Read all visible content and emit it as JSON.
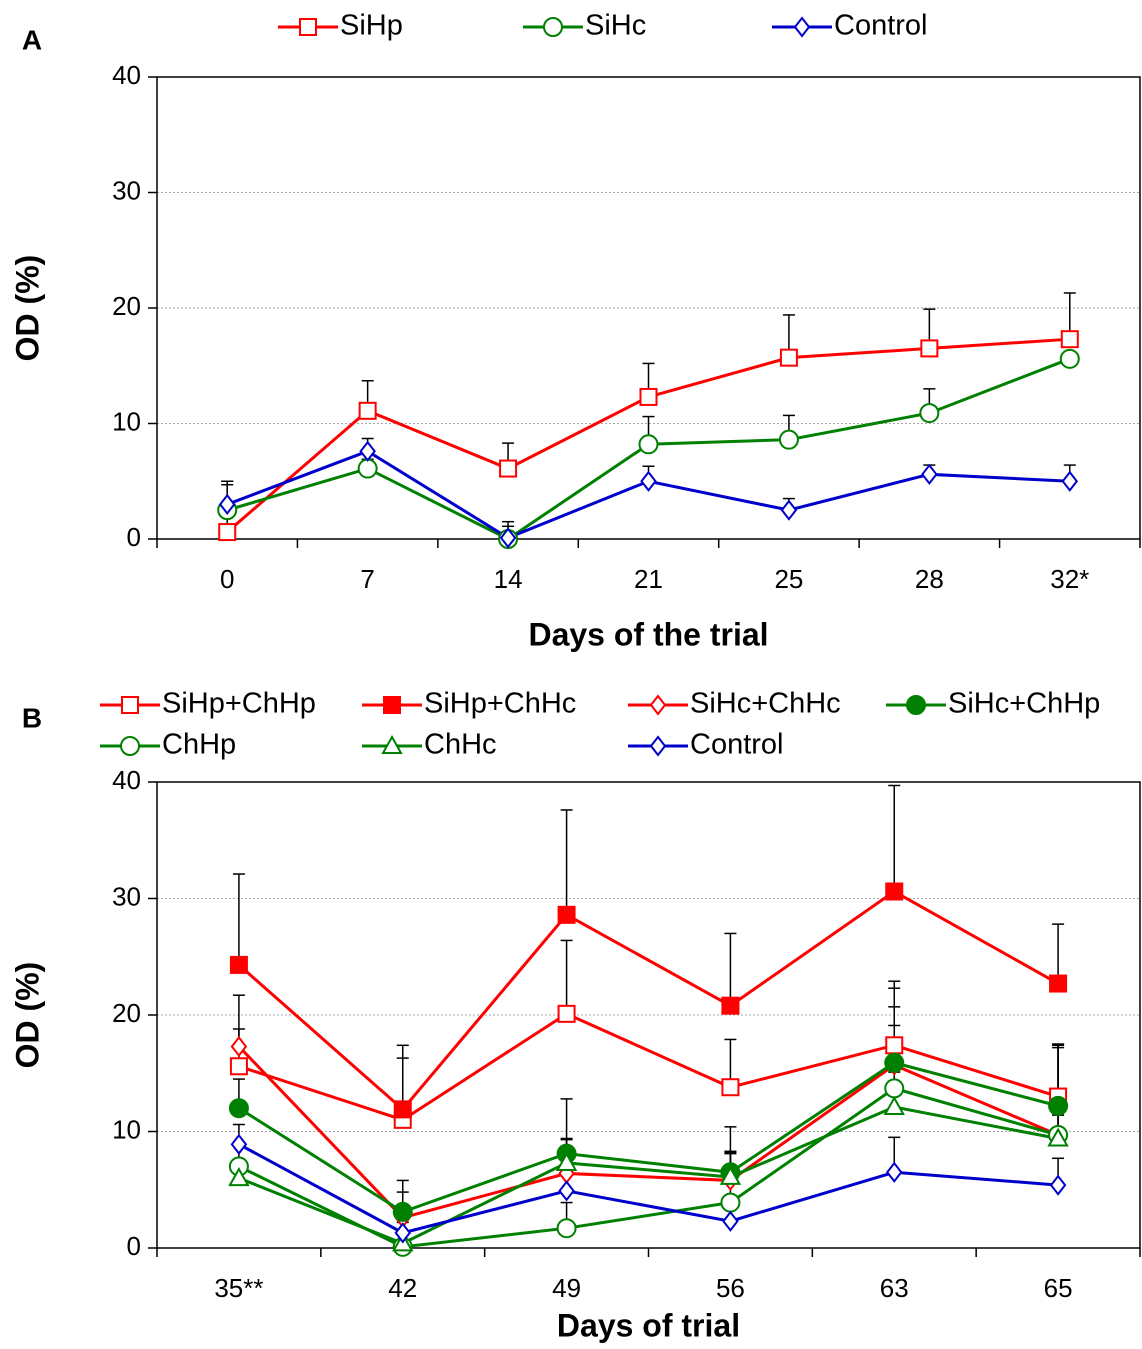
{
  "chart_data": [
    {
      "type": "line",
      "panel_label": "A",
      "x_label": "Days of the trial",
      "y_label": "OD (%)",
      "categories": [
        "0",
        "7",
        "14",
        "21",
        "25",
        "28",
        "32*"
      ],
      "ylim": [
        0,
        40
      ],
      "yticks": [
        0,
        10,
        20,
        30,
        40
      ],
      "grid": true,
      "series": [
        {
          "name": "SiHp",
          "color": "#ff0000",
          "marker": "square",
          "filled": false,
          "values": [
            0.6,
            11.1,
            6.1,
            12.3,
            15.7,
            16.5,
            17.3
          ],
          "errors": [
            4.4,
            2.6,
            2.2,
            2.9,
            3.7,
            3.4,
            4.0
          ]
        },
        {
          "name": "SiHc",
          "color": "#008000",
          "marker": "circle",
          "filled": false,
          "values": [
            2.5,
            6.1,
            0,
            8.2,
            8.6,
            10.9,
            15.6
          ],
          "errors": [
            2.2,
            0.8,
            1.5,
            2.4,
            2.1,
            2.1,
            0
          ]
        },
        {
          "name": "Control",
          "color": "#0000cc",
          "marker": "diamond",
          "filled": false,
          "values": [
            3.0,
            7.6,
            0.1,
            5.0,
            2.5,
            5.6,
            5.0
          ],
          "errors": [
            2.0,
            1.1,
            1.0,
            1.3,
            1.0,
            0.8,
            1.4
          ]
        }
      ]
    },
    {
      "type": "line",
      "panel_label": "B",
      "x_label": "Days of trial",
      "y_label": "OD (%)",
      "categories": [
        "35**",
        "42",
        "49",
        "56",
        "63",
        "65"
      ],
      "ylim": [
        0,
        40
      ],
      "yticks": [
        0,
        10,
        20,
        30,
        40
      ],
      "grid": true,
      "series": [
        {
          "name": "SiHp+ChHp",
          "color": "#ff0000",
          "marker": "square",
          "filled": false,
          "values": [
            15.6,
            11.0,
            20.1,
            13.8,
            17.4,
            13.0
          ],
          "errors": [
            3.2,
            5.3,
            6.3,
            4.1,
            1.7,
            4.4
          ]
        },
        {
          "name": "SiHp+ChHc",
          "color": "#ff0000",
          "marker": "square",
          "filled": true,
          "values": [
            24.3,
            11.9,
            28.6,
            20.8,
            30.6,
            22.7
          ],
          "errors": [
            7.8,
            5.5,
            9.0,
            6.2,
            9.1,
            5.1
          ]
        },
        {
          "name": "SiHc+ChHc",
          "color": "#ff0000",
          "marker": "diamond",
          "filled": false,
          "values": [
            17.3,
            2.6,
            6.4,
            5.8,
            15.7,
            9.7
          ],
          "errors": [
            4.4,
            2.2,
            3.0,
            2.5,
            6.6,
            7.8
          ]
        },
        {
          "name": "SiHc+ChHp",
          "color": "#008000",
          "marker": "circle",
          "filled": true,
          "values": [
            12.0,
            3.1,
            8.1,
            6.5,
            15.9,
            12.2
          ],
          "errors": [
            2.5,
            2.7,
            4.7,
            3.9,
            7.0,
            5.3
          ]
        },
        {
          "name": "ChHp",
          "color": "#008000",
          "marker": "circle",
          "filled": false,
          "values": [
            7.0,
            0.1,
            1.7,
            3.9,
            13.7,
            9.7
          ],
          "errors": [
            2.0,
            3.0,
            2.2,
            4.3,
            7.0,
            7.5
          ]
        },
        {
          "name": "ChHc",
          "color": "#008000",
          "marker": "triangle",
          "filled": false,
          "values": [
            6.0,
            0.4,
            7.3,
            6.1,
            12.1,
            9.4
          ],
          "errors": [
            1.5,
            1.8,
            2.0,
            2.0,
            3.0,
            2.0
          ]
        },
        {
          "name": "Control",
          "color": "#0000cc",
          "marker": "diamond",
          "filled": false,
          "values": [
            8.9,
            1.3,
            4.9,
            2.3,
            6.5,
            5.4
          ],
          "errors": [
            1.7,
            1.6,
            1.5,
            1.0,
            3.0,
            2.3
          ]
        }
      ]
    }
  ]
}
